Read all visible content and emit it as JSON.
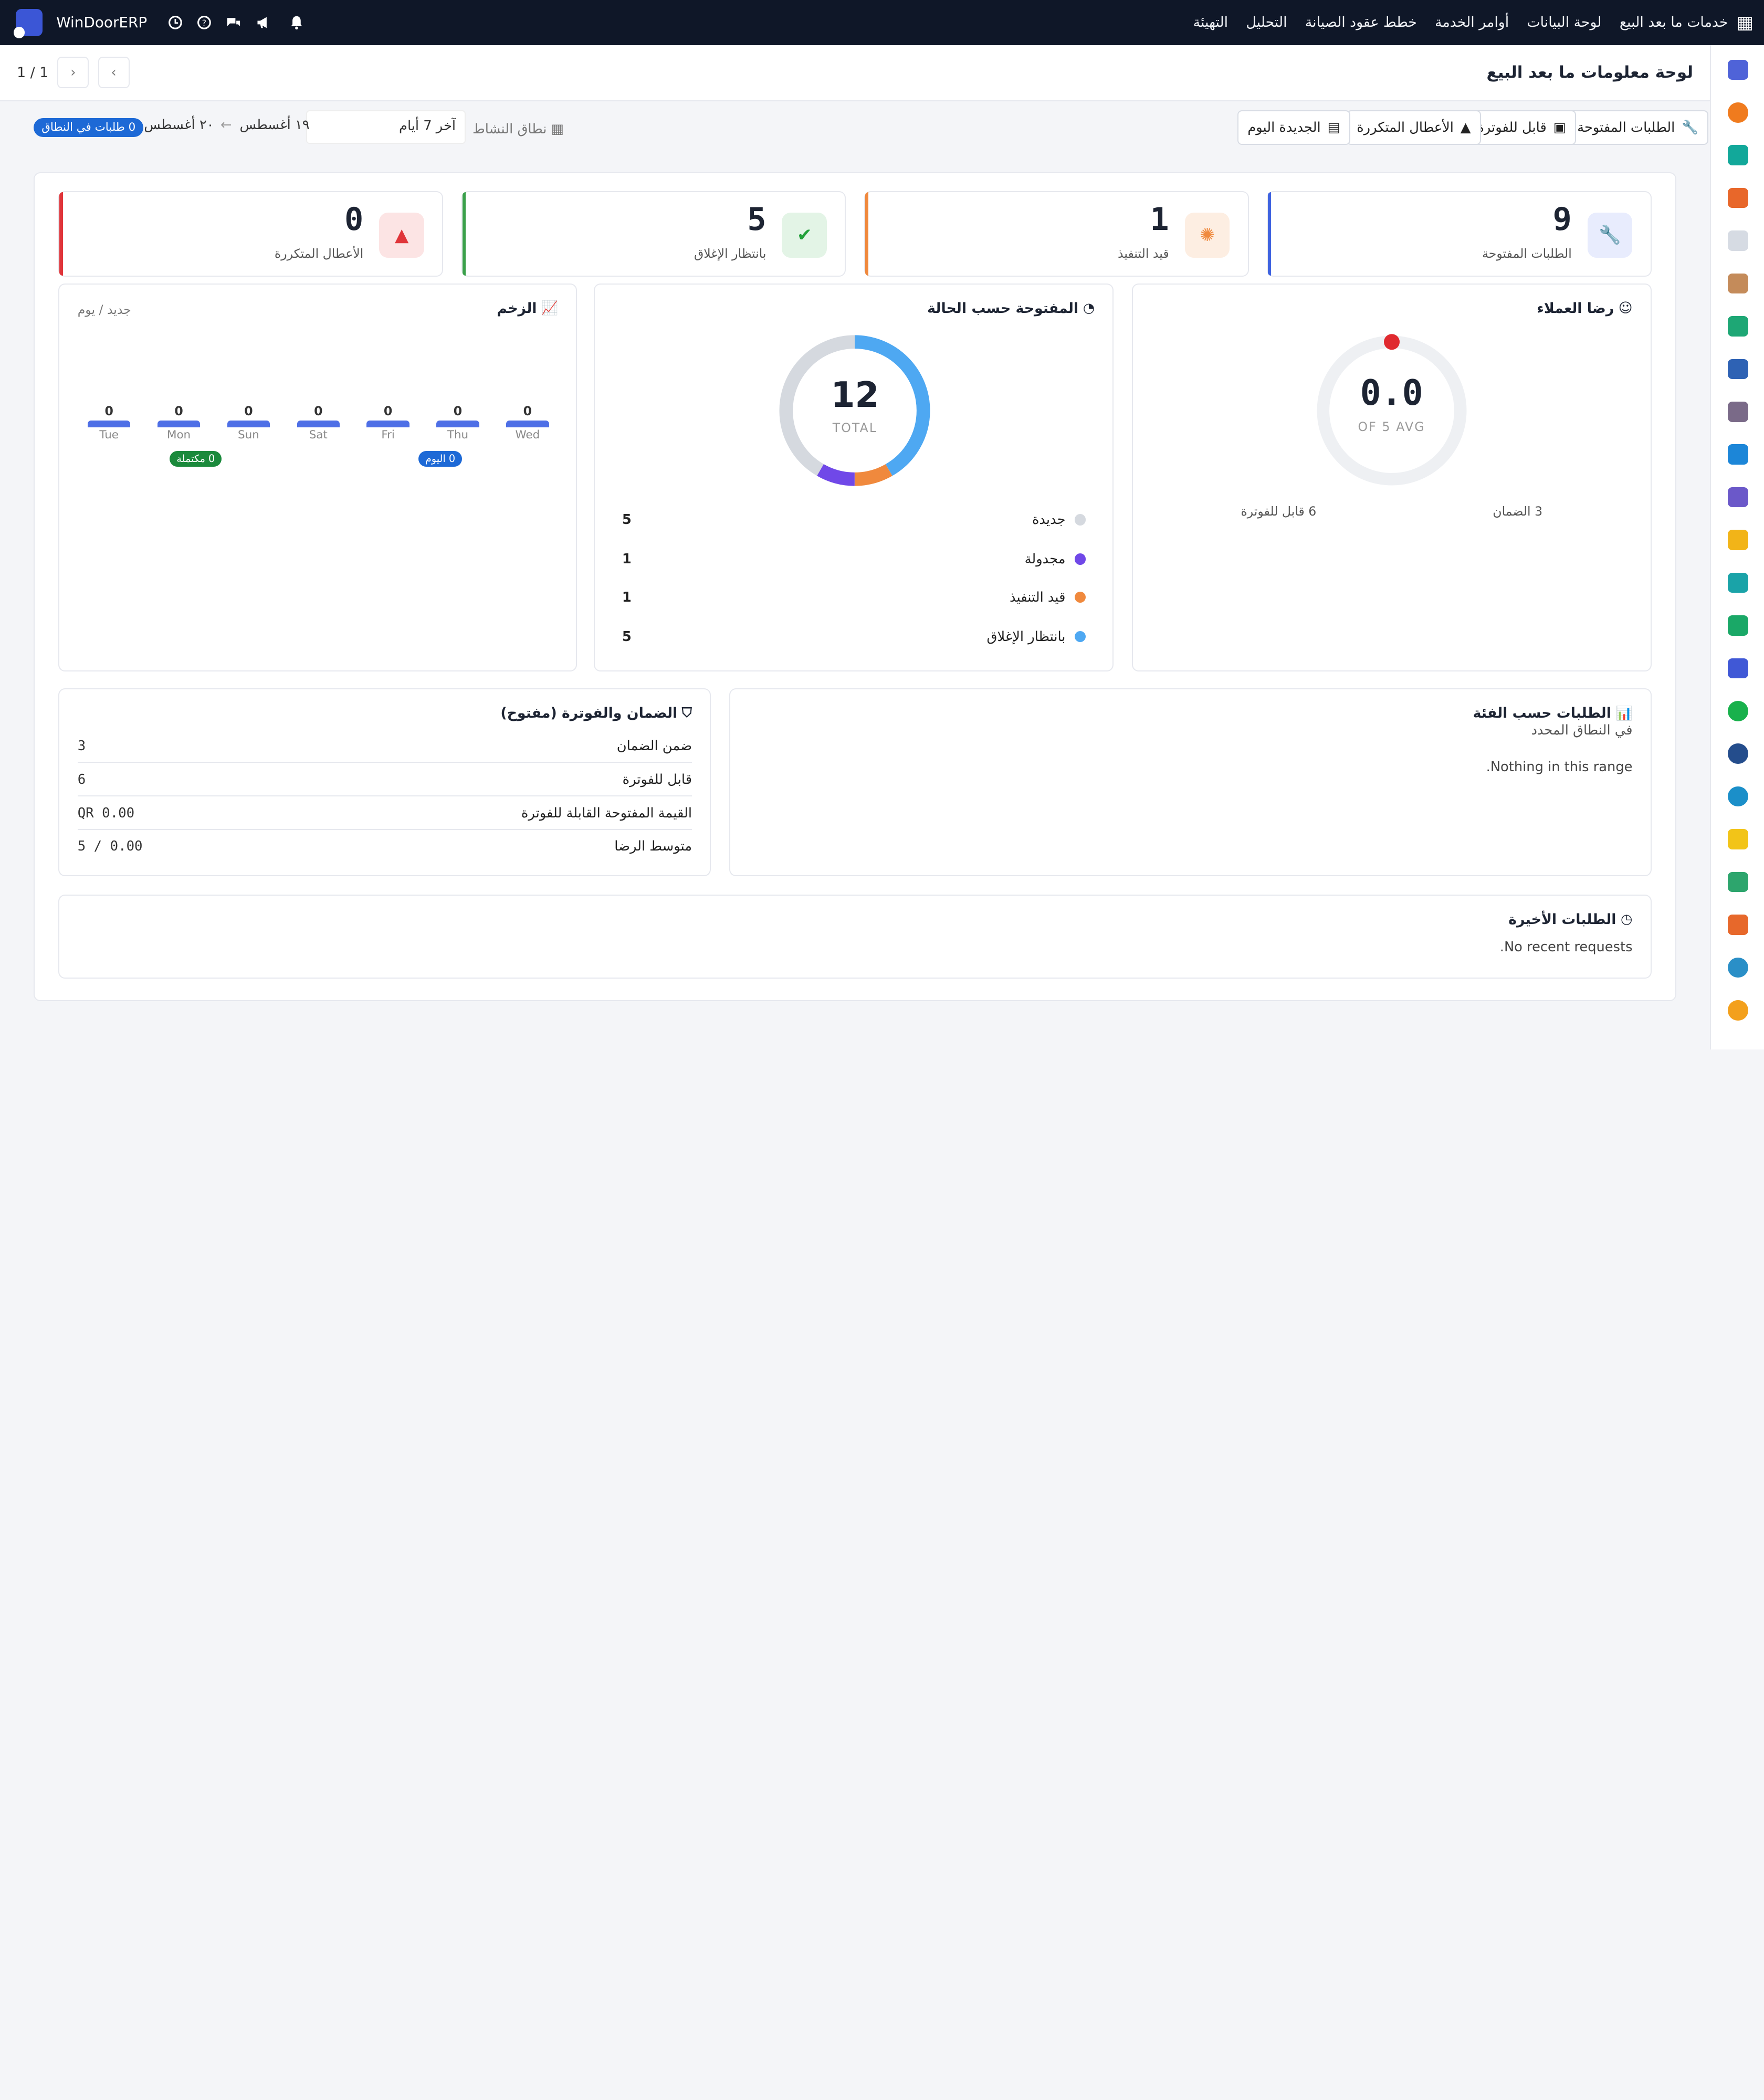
{
  "topbar": {
    "brand": "WinDoorERP",
    "menu": [
      "خدمات ما بعد البيع",
      "لوحة البيانات",
      "أوامر الخدمة",
      "خطط عقود الصيانة",
      "التحليل",
      "التهيئة"
    ]
  },
  "header": {
    "title": "لوحة معلومات ما بعد البيع",
    "pager": "1 / 1"
  },
  "filters": {
    "open_requests": "الطلبات المفتوحة",
    "billable": "قابل للفوترة",
    "repeat_faults": "الأعطال المتكررة",
    "new_today": "الجديدة اليوم",
    "activity_range_label": "نطاق النشاط",
    "range_value": "آخر 7 أيام",
    "date_from": "١٩ أغسطس",
    "arrow": "←",
    "date_to": "٢٠ أغسطس",
    "in_range_badge": "0 طلبات في النطاق"
  },
  "kpis": [
    {
      "value": "9",
      "label": "الطلبات المفتوحة",
      "color": "#3f63e0",
      "icon": "wrench-icon"
    },
    {
      "value": "1",
      "label": "قيد التنفيذ",
      "color": "#f0893d",
      "icon": "spinner-icon"
    },
    {
      "value": "5",
      "label": "بانتظار الإغلاق",
      "color": "#3aa04a",
      "icon": "check-circle-icon"
    },
    {
      "value": "0",
      "label": "الأعطال المتكررة",
      "color": "#e0353a",
      "icon": "warning-icon"
    }
  ],
  "satisfaction": {
    "title": "رضا العملاء",
    "value": "0.0",
    "sub": "OF 5 AVG",
    "warranty": "3 الضمان",
    "billable": "6 قابل للفوترة"
  },
  "status": {
    "title": "المفتوحة حسب الحالة",
    "total": "12",
    "total_label": "TOTAL",
    "legend": [
      {
        "name": "جديدة",
        "value": "5",
        "color": "#d5d9df"
      },
      {
        "name": "مجدولة",
        "value": "1",
        "color": "#7048e8"
      },
      {
        "name": "قيد التنفيذ",
        "value": "1",
        "color": "#f0893d"
      },
      {
        "name": "بانتظار الإغلاق",
        "value": "5",
        "color": "#4ea8f2"
      }
    ]
  },
  "momentum": {
    "title": "الزخم",
    "subtitle": "جديد / يوم",
    "days": [
      {
        "day": "Wed",
        "value": "0"
      },
      {
        "day": "Thu",
        "value": "0"
      },
      {
        "day": "Fri",
        "value": "0"
      },
      {
        "day": "Sat",
        "value": "0"
      },
      {
        "day": "Sun",
        "value": "0"
      },
      {
        "day": "Mon",
        "value": "0"
      },
      {
        "day": "Tue",
        "value": "0"
      }
    ],
    "today_tag": "0 اليوم",
    "done_tag": "0 مكتملة"
  },
  "category": {
    "title": "الطلبات حسب الفئة",
    "subtitle": "في النطاق المحدد",
    "empty": ".Nothing in this range"
  },
  "warranty_billing": {
    "title": "الضمان والفوترة (مفتوح)",
    "rows": [
      {
        "label": "ضمن الضمان",
        "value": "3"
      },
      {
        "label": "قابل للفوترة",
        "value": "6"
      },
      {
        "label": "القيمة المفتوحة القابلة للفوترة",
        "value": "0.00 QR"
      },
      {
        "label": "متوسط الرضا",
        "value": "0.00 / 5"
      }
    ]
  },
  "recent": {
    "title": "الطلبات الأخيرة",
    "empty": ".No recent requests"
  },
  "chart_data": {
    "type": "pie",
    "title": "المفتوحة حسب الحالة",
    "categories": [
      "جديدة",
      "مجدولة",
      "قيد التنفيذ",
      "بانتظار الإغلاق"
    ],
    "values": [
      5,
      1,
      1,
      5
    ]
  }
}
